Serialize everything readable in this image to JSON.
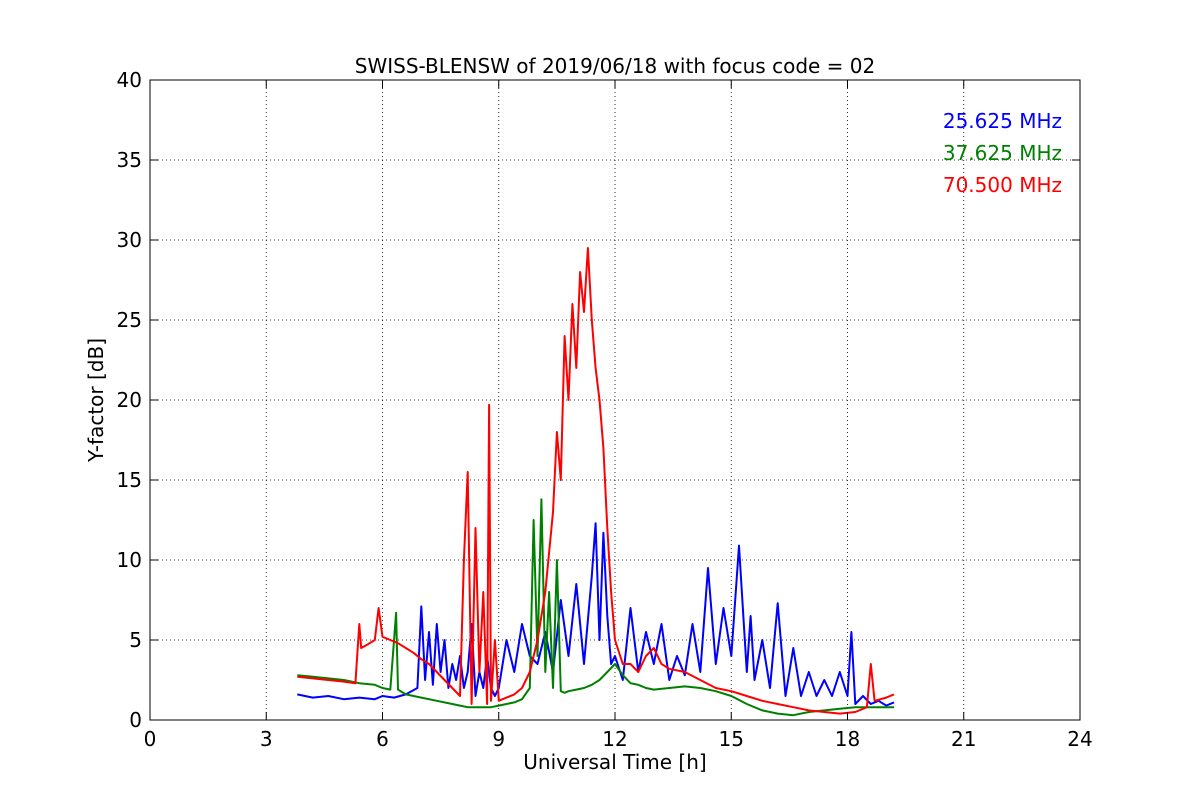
{
  "chart_data": {
    "type": "line",
    "title": "SWISS-BLENSW of 2019/06/18 with focus code = 02",
    "xlabel": "Universal Time [h]",
    "ylabel": "Y-factor [dB]",
    "xlim": [
      0,
      24
    ],
    "ylim": [
      0,
      40
    ],
    "xticks": [
      0,
      3,
      6,
      9,
      12,
      15,
      18,
      21,
      24
    ],
    "yticks": [
      0,
      5,
      10,
      15,
      20,
      25,
      30,
      35,
      40
    ],
    "grid": true,
    "legend_position": "top-right",
    "series": [
      {
        "name": "25.625 MHz",
        "color": "#0000ff",
        "x": [
          3.8,
          4.2,
          4.6,
          5.0,
          5.4,
          5.8,
          6.0,
          6.3,
          6.6,
          6.9,
          7.0,
          7.1,
          7.2,
          7.3,
          7.4,
          7.5,
          7.6,
          7.7,
          7.8,
          7.9,
          8.0,
          8.1,
          8.2,
          8.3,
          8.4,
          8.5,
          8.6,
          8.7,
          8.8,
          8.9,
          9.0,
          9.2,
          9.4,
          9.6,
          9.8,
          10.0,
          10.2,
          10.4,
          10.6,
          10.8,
          11.0,
          11.2,
          11.4,
          11.5,
          11.6,
          11.7,
          11.8,
          11.9,
          12.0,
          12.2,
          12.4,
          12.6,
          12.8,
          13.0,
          13.2,
          13.4,
          13.6,
          13.8,
          14.0,
          14.2,
          14.4,
          14.6,
          14.8,
          15.0,
          15.2,
          15.4,
          15.5,
          15.6,
          15.8,
          16.0,
          16.2,
          16.4,
          16.6,
          16.8,
          17.0,
          17.2,
          17.4,
          17.6,
          17.8,
          18.0,
          18.1,
          18.2,
          18.4,
          18.6,
          18.8,
          19.0,
          19.2
        ],
        "y": [
          1.6,
          1.4,
          1.5,
          1.3,
          1.4,
          1.3,
          1.5,
          1.4,
          1.6,
          2.0,
          7.1,
          2.5,
          5.5,
          2.2,
          6.0,
          3.0,
          5.0,
          2.0,
          3.5,
          2.5,
          4.0,
          2.0,
          3.0,
          6.0,
          1.5,
          3.0,
          2.0,
          4.0,
          2.0,
          1.5,
          2.0,
          5.0,
          3.0,
          6.0,
          4.0,
          3.5,
          5.5,
          3.0,
          7.5,
          4.0,
          8.5,
          3.5,
          9.0,
          12.3,
          5.0,
          11.7,
          6.5,
          3.5,
          4.0,
          2.5,
          7.0,
          3.0,
          5.5,
          3.5,
          6.0,
          2.5,
          4.0,
          2.8,
          6.0,
          3.0,
          9.5,
          3.5,
          7.0,
          4.0,
          10.9,
          3.0,
          6.5,
          2.5,
          5.0,
          2.0,
          7.3,
          1.5,
          4.5,
          1.5,
          3.0,
          1.5,
          2.5,
          1.5,
          3.0,
          1.5,
          5.5,
          1.0,
          1.5,
          1.0,
          1.2,
          0.9,
          1.1
        ]
      },
      {
        "name": "37.625 MHz",
        "color": "#008000",
        "x": [
          3.8,
          4.2,
          4.6,
          5.0,
          5.4,
          5.8,
          6.0,
          6.2,
          6.35,
          6.4,
          6.6,
          7.0,
          7.4,
          7.8,
          8.0,
          8.2,
          8.4,
          8.6,
          8.8,
          9.0,
          9.2,
          9.4,
          9.6,
          9.8,
          9.9,
          10.0,
          10.1,
          10.2,
          10.3,
          10.4,
          10.5,
          10.6,
          10.7,
          10.8,
          11.0,
          11.2,
          11.4,
          11.6,
          11.8,
          12.0,
          12.2,
          12.4,
          12.6,
          12.8,
          13.0,
          13.4,
          13.8,
          14.2,
          14.6,
          15.0,
          15.4,
          15.8,
          16.2,
          16.6,
          17.0,
          17.4,
          17.8,
          18.2,
          18.6,
          19.0,
          19.2
        ],
        "y": [
          2.8,
          2.7,
          2.6,
          2.5,
          2.3,
          2.2,
          2.0,
          1.9,
          6.7,
          1.9,
          1.6,
          1.4,
          1.2,
          1.0,
          0.9,
          0.8,
          0.8,
          0.8,
          0.8,
          0.9,
          1.0,
          1.1,
          1.3,
          2.0,
          12.5,
          4.0,
          13.8,
          3.0,
          8.0,
          2.0,
          10.0,
          1.8,
          1.7,
          1.8,
          1.9,
          2.0,
          2.2,
          2.5,
          3.0,
          3.5,
          2.8,
          2.3,
          2.2,
          2.0,
          1.9,
          2.0,
          2.1,
          2.0,
          1.8,
          1.5,
          1.0,
          0.6,
          0.4,
          0.3,
          0.5,
          0.6,
          0.7,
          0.8,
          0.8,
          0.8,
          0.8
        ]
      },
      {
        "name": "70.500 MHz",
        "color": "#ff0000",
        "x": [
          3.8,
          4.2,
          4.6,
          5.0,
          5.3,
          5.4,
          5.45,
          5.6,
          5.8,
          5.9,
          6.0,
          6.2,
          6.4,
          6.6,
          6.8,
          7.0,
          7.2,
          7.4,
          7.6,
          7.8,
          8.0,
          8.1,
          8.2,
          8.3,
          8.4,
          8.5,
          8.6,
          8.7,
          8.75,
          8.8,
          8.9,
          9.0,
          9.2,
          9.4,
          9.6,
          9.8,
          10.0,
          10.2,
          10.4,
          10.5,
          10.6,
          10.7,
          10.8,
          10.9,
          11.0,
          11.1,
          11.2,
          11.3,
          11.4,
          11.5,
          11.6,
          11.7,
          11.8,
          11.9,
          12.0,
          12.2,
          12.4,
          12.6,
          12.8,
          13.0,
          13.2,
          13.4,
          13.8,
          14.2,
          14.6,
          15.0,
          15.4,
          15.8,
          16.2,
          16.6,
          17.0,
          17.4,
          17.8,
          18.2,
          18.5,
          18.6,
          18.7,
          19.0,
          19.2
        ],
        "y": [
          2.7,
          2.6,
          2.5,
          2.4,
          2.3,
          6.0,
          4.5,
          4.7,
          5.0,
          7.0,
          5.2,
          5.0,
          4.8,
          4.5,
          4.2,
          3.8,
          3.5,
          3.0,
          2.5,
          2.0,
          1.5,
          10.0,
          15.5,
          1.0,
          12.0,
          3.0,
          8.0,
          1.0,
          19.7,
          1.2,
          5.0,
          1.2,
          1.4,
          1.6,
          2.0,
          3.0,
          5.0,
          8.0,
          13.0,
          18.0,
          15.0,
          24.0,
          20.0,
          26.0,
          22.0,
          28.0,
          25.5,
          29.5,
          25.0,
          22.0,
          20.0,
          17.0,
          12.0,
          8.0,
          5.0,
          3.5,
          3.5,
          3.0,
          4.0,
          4.5,
          3.5,
          3.2,
          3.0,
          2.5,
          2.0,
          1.8,
          1.5,
          1.2,
          1.0,
          0.8,
          0.6,
          0.5,
          0.4,
          0.5,
          0.8,
          3.5,
          1.2,
          1.4,
          1.6
        ]
      }
    ]
  }
}
